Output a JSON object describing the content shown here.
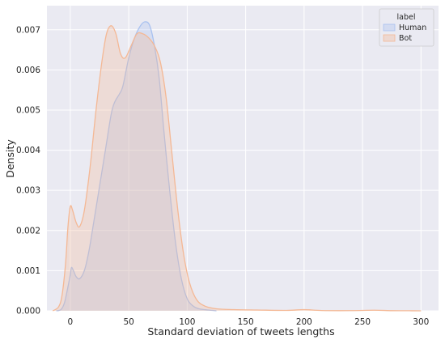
{
  "chart_data": {
    "type": "area",
    "xlabel": "Standard deviation of tweets lengths",
    "ylabel": "Density",
    "xlim": [
      -20,
      315
    ],
    "ylim": [
      0,
      0.0076
    ],
    "x_ticks": [
      0,
      50,
      100,
      150,
      200,
      250,
      300
    ],
    "y_ticks": [
      0.0,
      0.001,
      0.002,
      0.003,
      0.004,
      0.005,
      0.006,
      0.007
    ],
    "y_tick_labels": [
      "0.000",
      "0.001",
      "0.002",
      "0.003",
      "0.004",
      "0.005",
      "0.006",
      "0.007"
    ],
    "grid": true,
    "legend": {
      "title": "label",
      "position": "top-right"
    },
    "series": [
      {
        "name": "Human",
        "color": "#a8c1f0",
        "points": [
          [
            -12,
            0.0
          ],
          [
            -8,
            3e-05
          ],
          [
            -5,
            0.0002
          ],
          [
            -2,
            0.0006
          ],
          [
            0,
            0.0009
          ],
          [
            1,
            0.00108
          ],
          [
            3,
            0.00098
          ],
          [
            5,
            0.00085
          ],
          [
            8,
            0.0008
          ],
          [
            12,
            0.001
          ],
          [
            16,
            0.0015
          ],
          [
            20,
            0.0022
          ],
          [
            25,
            0.0031
          ],
          [
            30,
            0.004
          ],
          [
            35,
            0.0049
          ],
          [
            38,
            0.0052
          ],
          [
            42,
            0.0054
          ],
          [
            45,
            0.0056
          ],
          [
            50,
            0.0063
          ],
          [
            55,
            0.0068
          ],
          [
            60,
            0.0071
          ],
          [
            64,
            0.0072
          ],
          [
            68,
            0.0071
          ],
          [
            72,
            0.0066
          ],
          [
            76,
            0.0058
          ],
          [
            80,
            0.0045
          ],
          [
            85,
            0.003
          ],
          [
            90,
            0.0017
          ],
          [
            95,
            0.0008
          ],
          [
            100,
            0.0003
          ],
          [
            105,
            0.00012
          ],
          [
            110,
            5e-05
          ],
          [
            118,
            2e-05
          ],
          [
            125,
            0.0
          ]
        ]
      },
      {
        "name": "Bot",
        "color": "#f4b895",
        "points": [
          [
            -15,
            0.0
          ],
          [
            -10,
            0.0001
          ],
          [
            -7,
            0.0004
          ],
          [
            -4,
            0.0012
          ],
          [
            -2,
            0.0021
          ],
          [
            0,
            0.0026
          ],
          [
            2,
            0.0025
          ],
          [
            5,
            0.0022
          ],
          [
            8,
            0.0021
          ],
          [
            12,
            0.0025
          ],
          [
            17,
            0.0036
          ],
          [
            22,
            0.005
          ],
          [
            27,
            0.0062
          ],
          [
            31,
            0.0069
          ],
          [
            35,
            0.0071
          ],
          [
            39,
            0.0069
          ],
          [
            43,
            0.0064
          ],
          [
            47,
            0.0063
          ],
          [
            52,
            0.0066
          ],
          [
            57,
            0.0069
          ],
          [
            62,
            0.0069
          ],
          [
            67,
            0.0068
          ],
          [
            72,
            0.0066
          ],
          [
            77,
            0.0062
          ],
          [
            82,
            0.0053
          ],
          [
            87,
            0.0039
          ],
          [
            92,
            0.0025
          ],
          [
            97,
            0.0014
          ],
          [
            102,
            0.0007
          ],
          [
            108,
            0.00028
          ],
          [
            115,
            0.00012
          ],
          [
            125,
            5e-05
          ],
          [
            140,
            3e-05
          ],
          [
            160,
            2e-05
          ],
          [
            185,
            1e-05
          ],
          [
            200,
            3e-05
          ],
          [
            215,
            8e-06
          ],
          [
            240,
            5e-06
          ],
          [
            260,
            1.5e-05
          ],
          [
            275,
            4e-06
          ],
          [
            290,
            2e-06
          ],
          [
            300,
            0.0
          ]
        ]
      }
    ]
  }
}
